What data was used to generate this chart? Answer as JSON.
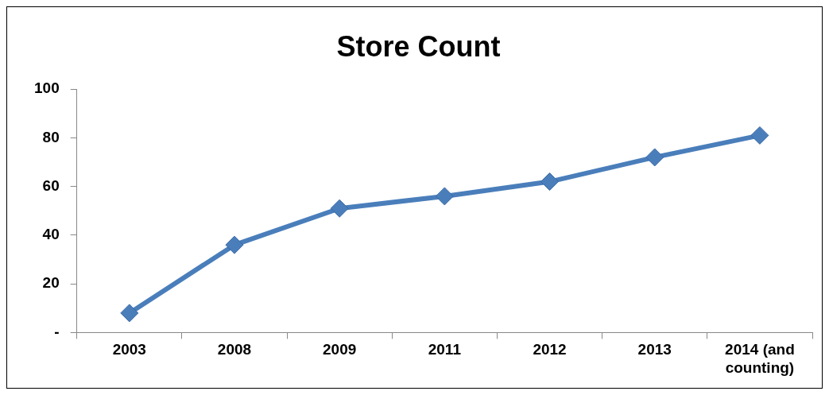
{
  "chart_data": {
    "type": "line",
    "title": "Store Count",
    "categories": [
      "2003",
      "2008",
      "2009",
      "2011",
      "2012",
      "2013",
      "2014 (and counting)"
    ],
    "series": [
      {
        "color": "#4a7ebb",
        "values": [
          8,
          36,
          51,
          56,
          62,
          72,
          81
        ]
      }
    ],
    "ylim": [
      0,
      100
    ],
    "yticks": [
      {
        "value": 0,
        "label": "-"
      },
      20,
      40,
      60,
      80,
      100
    ],
    "grid": false,
    "legend": false,
    "marker": "diamond",
    "line_style": "solid"
  }
}
